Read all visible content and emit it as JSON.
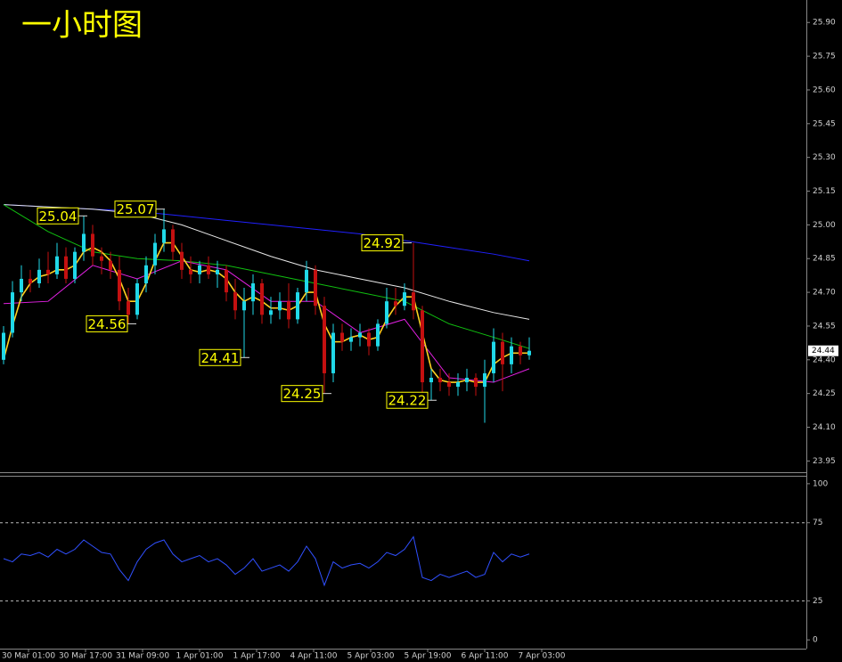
{
  "chart_data": [
    {
      "type": "candlestick",
      "title": "一小时图",
      "categories": [
        "30 Mar 01:00",
        "30 Mar 17:00",
        "31 Mar 09:00",
        "1 Apr 01:00",
        "1 Apr 17:00",
        "4 Apr 11:00",
        "5 Apr 03:00",
        "5 Apr 19:00",
        "6 Apr 11:00",
        "7 Apr 03:00"
      ],
      "up_color": "#20d8e8",
      "down_color": "#c41010",
      "candles": [
        [
          24.4,
          24.55,
          24.38,
          24.52
        ],
        [
          24.52,
          24.75,
          24.5,
          24.7
        ],
        [
          24.7,
          24.82,
          24.66,
          24.76
        ],
        [
          24.76,
          24.8,
          24.7,
          24.74
        ],
        [
          24.74,
          24.85,
          24.72,
          24.8
        ],
        [
          24.8,
          24.88,
          24.74,
          24.78
        ],
        [
          24.78,
          24.92,
          24.76,
          24.86
        ],
        [
          24.86,
          24.9,
          24.74,
          24.76
        ],
        [
          24.76,
          24.9,
          24.74,
          24.88
        ],
        [
          24.88,
          25.04,
          24.84,
          24.96
        ],
        [
          24.96,
          25.0,
          24.82,
          24.86
        ],
        [
          24.86,
          24.9,
          24.78,
          24.84
        ],
        [
          24.84,
          24.88,
          24.76,
          24.8
        ],
        [
          24.8,
          24.86,
          24.62,
          24.66
        ],
        [
          24.66,
          24.72,
          24.56,
          24.6
        ],
        [
          24.6,
          24.76,
          24.58,
          24.74
        ],
        [
          24.74,
          24.86,
          24.7,
          24.82
        ],
        [
          24.82,
          24.96,
          24.78,
          24.92
        ],
        [
          24.92,
          25.07,
          24.88,
          24.98
        ],
        [
          24.98,
          25.0,
          24.84,
          24.88
        ],
        [
          24.88,
          24.92,
          24.76,
          24.8
        ],
        [
          24.8,
          24.86,
          24.74,
          24.78
        ],
        [
          24.78,
          24.84,
          24.74,
          24.82
        ],
        [
          24.82,
          24.86,
          24.76,
          24.78
        ],
        [
          24.78,
          24.84,
          24.72,
          24.8
        ],
        [
          24.8,
          24.82,
          24.66,
          24.7
        ],
        [
          24.7,
          24.76,
          24.58,
          24.62
        ],
        [
          24.62,
          24.72,
          24.41,
          24.66
        ],
        [
          24.66,
          24.78,
          24.6,
          24.74
        ],
        [
          24.74,
          24.76,
          24.56,
          24.6
        ],
        [
          24.6,
          24.68,
          24.56,
          24.62
        ],
        [
          24.62,
          24.7,
          24.58,
          24.66
        ],
        [
          24.66,
          24.74,
          24.54,
          24.58
        ],
        [
          24.58,
          24.72,
          24.56,
          24.7
        ],
        [
          24.7,
          24.84,
          24.66,
          24.8
        ],
        [
          24.8,
          24.82,
          24.6,
          24.64
        ],
        [
          24.64,
          24.68,
          24.25,
          24.34
        ],
        [
          24.34,
          24.56,
          24.3,
          24.52
        ],
        [
          24.52,
          24.56,
          24.44,
          24.48
        ],
        [
          24.48,
          24.54,
          24.44,
          24.5
        ],
        [
          24.5,
          24.56,
          24.46,
          24.52
        ],
        [
          24.52,
          24.54,
          24.42,
          24.46
        ],
        [
          24.46,
          24.58,
          24.44,
          24.56
        ],
        [
          24.56,
          24.72,
          24.54,
          24.66
        ],
        [
          24.66,
          24.72,
          24.6,
          24.64
        ],
        [
          24.64,
          24.74,
          24.62,
          24.7
        ],
        [
          24.7,
          24.92,
          24.58,
          24.62
        ],
        [
          24.62,
          24.64,
          24.24,
          24.3
        ],
        [
          24.3,
          24.36,
          24.22,
          24.32
        ],
        [
          24.32,
          24.36,
          24.26,
          24.3
        ],
        [
          24.3,
          24.34,
          24.24,
          24.28
        ],
        [
          24.28,
          24.34,
          24.24,
          24.3
        ],
        [
          24.3,
          24.36,
          24.26,
          24.32
        ],
        [
          24.32,
          24.34,
          24.24,
          24.28
        ],
        [
          24.28,
          24.4,
          24.12,
          24.34
        ],
        [
          24.34,
          24.54,
          24.3,
          24.48
        ],
        [
          24.48,
          24.52,
          24.26,
          24.38
        ],
        [
          24.38,
          24.5,
          24.34,
          24.46
        ],
        [
          24.46,
          24.48,
          24.38,
          24.42
        ],
        [
          24.42,
          24.5,
          24.4,
          24.44
        ]
      ],
      "lines": [
        {
          "color": "#2020ff",
          "x": [
            0,
            5,
            10,
            15,
            20,
            25,
            30,
            35,
            40,
            45,
            50,
            55,
            59
          ],
          "values": [
            25.09,
            25.08,
            25.07,
            25.06,
            25.04,
            25.02,
            25.0,
            24.98,
            24.96,
            24.93,
            24.9,
            24.87,
            24.84
          ]
        },
        {
          "color": "#e8e8e8",
          "x": [
            0,
            5,
            10,
            15,
            20,
            25,
            30,
            35,
            40,
            45,
            50,
            55,
            59
          ],
          "values": [
            25.09,
            25.08,
            25.07,
            25.05,
            25.0,
            24.93,
            24.86,
            24.8,
            24.76,
            24.72,
            24.66,
            24.61,
            24.58
          ]
        },
        {
          "color": "#10c010",
          "x": [
            0,
            5,
            10,
            15,
            20,
            25,
            30,
            35,
            40,
            45,
            50,
            55,
            59
          ],
          "values": [
            25.09,
            24.97,
            24.88,
            24.85,
            24.84,
            24.82,
            24.78,
            24.74,
            24.7,
            24.66,
            24.56,
            24.5,
            24.45
          ]
        },
        {
          "color": "#e020e0",
          "x": [
            0,
            5,
            10,
            15,
            20,
            25,
            30,
            35,
            40,
            45,
            50,
            55,
            59
          ],
          "values": [
            24.65,
            24.66,
            24.82,
            24.76,
            24.84,
            24.8,
            24.66,
            24.66,
            24.52,
            24.58,
            24.32,
            24.3,
            24.36
          ]
        },
        {
          "color": "#ffd020",
          "values": [
            24.4,
            24.55,
            24.68,
            24.74,
            24.77,
            24.78,
            24.8,
            24.8,
            24.82,
            24.88,
            24.9,
            24.88,
            24.84,
            24.76,
            24.66,
            24.66,
            24.74,
            24.84,
            24.92,
            24.92,
            24.86,
            24.8,
            24.79,
            24.8,
            24.79,
            24.76,
            24.7,
            24.66,
            24.68,
            24.66,
            24.63,
            24.63,
            24.62,
            24.64,
            24.7,
            24.7,
            24.56,
            24.48,
            24.48,
            24.5,
            24.51,
            24.49,
            24.5,
            24.58,
            24.64,
            24.68,
            24.68,
            24.52,
            24.36,
            24.31,
            24.3,
            24.3,
            24.31,
            24.3,
            24.3,
            24.38,
            24.41,
            24.43,
            24.43,
            24.43
          ]
        }
      ],
      "annotations": [
        25.04,
        25.07,
        24.92,
        24.56,
        24.41,
        24.25,
        24.22
      ],
      "current_price": 24.44,
      "ylim": [
        23.9,
        26.0
      ],
      "yticks": [
        {
          "value": 25.9,
          "label": "25.90"
        },
        25.75,
        {
          "value": 25.6,
          "label": "25.60"
        },
        25.45,
        {
          "value": 25.3,
          "label": "25.30"
        },
        25.15,
        {
          "value": 25.0,
          "label": "25.00"
        },
        24.85,
        {
          "value": 24.7,
          "label": "24.70"
        },
        24.55,
        {
          "value": 24.4,
          "label": "24.40"
        },
        24.25,
        {
          "value": 24.1,
          "label": "24.10"
        },
        23.95
      ]
    },
    {
      "type": "line",
      "color": "#3050ff",
      "values": [
        52,
        50,
        55,
        54,
        56,
        53,
        58,
        55,
        58,
        64,
        60,
        56,
        55,
        45,
        38,
        50,
        58,
        62,
        64,
        55,
        50,
        52,
        54,
        50,
        52,
        48,
        42,
        46,
        52,
        44,
        46,
        48,
        44,
        50,
        60,
        52,
        35,
        50,
        46,
        48,
        49,
        46,
        50,
        56,
        54,
        58,
        66,
        40,
        38,
        42,
        40,
        42,
        44,
        40,
        42,
        56,
        50,
        55,
        53,
        55
      ],
      "ylim": [
        -5.6,
        104.5
      ],
      "yticks": [
        100,
        75,
        25,
        0
      ],
      "levels": [
        75,
        25
      ]
    }
  ]
}
